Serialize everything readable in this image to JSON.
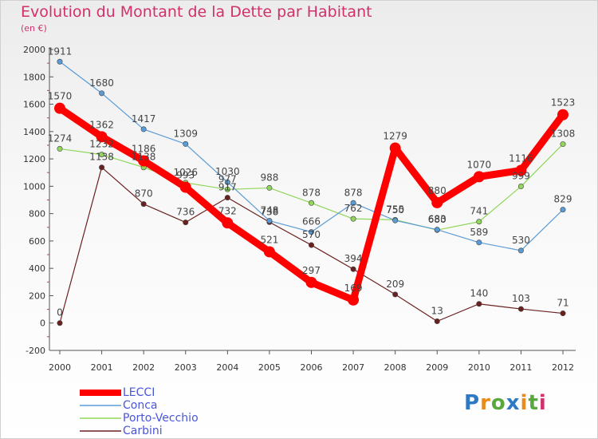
{
  "title": "Evolution du Montant de la Dette par Habitant",
  "subtitle": "(en €)",
  "logo": "Proxiti",
  "chart_data": {
    "type": "line",
    "x": [
      "2000",
      "2001",
      "2002",
      "2003",
      "2004",
      "2005",
      "2006",
      "2007",
      "2008",
      "2009",
      "2010",
      "2011",
      "2012"
    ],
    "ylim": [
      -200,
      2000
    ],
    "yticks": [
      -200,
      0,
      200,
      400,
      600,
      800,
      1000,
      1200,
      1400,
      1600,
      1800,
      2000
    ],
    "grid": false,
    "legend_position": "bottom-left",
    "series": [
      {
        "name": "LECCI",
        "color": "#ff0000",
        "emphasis": true,
        "values": [
          1570,
          1362,
          1186,
          993,
          732,
          521,
          297,
          169,
          1279,
          880,
          1070,
          1116,
          1523
        ]
      },
      {
        "name": "Conca",
        "color": "#5b9bd5",
        "values": [
          1911,
          1680,
          1417,
          1309,
          1030,
          748,
          666,
          878,
          750,
          683,
          589,
          530,
          829
        ]
      },
      {
        "name": "Porto-Vecchio",
        "color": "#8fd65a",
        "values": [
          1274,
          1232,
          1138,
          1026,
          977,
          988,
          878,
          762,
          755,
          680,
          741,
          999,
          1308
        ]
      },
      {
        "name": "Carbini",
        "color": "#6b2020",
        "values": [
          0,
          1138,
          870,
          736,
          917,
          738,
          570,
          394,
          209,
          13,
          140,
          103,
          71
        ]
      }
    ]
  }
}
